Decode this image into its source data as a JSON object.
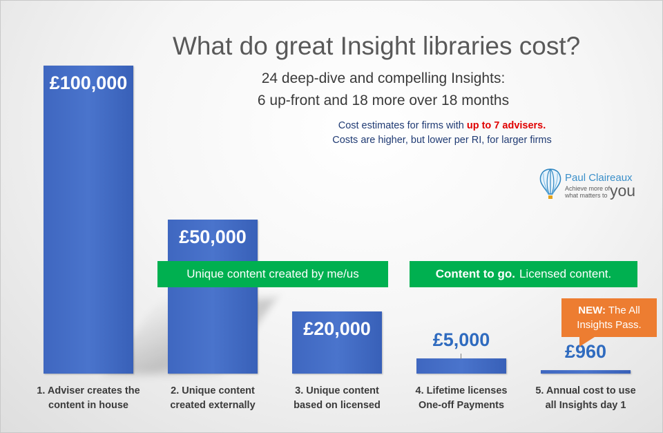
{
  "header": {
    "title": "What do great Insight libraries cost?",
    "subtitle_line1": "24 deep-dive and compelling Insights:",
    "subtitle_line2": "6 up-front and 18 more over 18 months",
    "note_line1_prefix": "Cost estimates for firms with ",
    "note_line1_highlight": "up to 7 advisers.",
    "note_line2": "Costs are higher, but lower per RI, for larger firms"
  },
  "logo": {
    "name": "Paul Claireaux",
    "tagline_line1": "Achieve more of",
    "tagline_line2": "what matters to",
    "tagline_word": "you",
    "icon": "hot-air-balloon-icon"
  },
  "banners": {
    "unique": "Unique content created by me/us",
    "licensed_bold": "Content to go.",
    "licensed_rest": "Licensed content."
  },
  "callout": {
    "bold": "NEW:",
    "rest": "The All Insights Pass."
  },
  "colors": {
    "bar": "#4472c4",
    "banner": "#00b050",
    "callout": "#ed7d31",
    "highlight": "#e00000",
    "outside_value": "#2f6bbf"
  },
  "chart_data": {
    "type": "bar",
    "categories": [
      [
        "1. Adviser creates the",
        "content in house"
      ],
      [
        "2. Unique content",
        "created externally"
      ],
      [
        "3. Unique content",
        "based on licensed"
      ],
      [
        "4. Lifetime licenses",
        "One-off Payments"
      ],
      [
        "5. Annual cost to use",
        "all Insights day 1"
      ]
    ],
    "values": [
      100000,
      50000,
      20000,
      5000,
      960
    ],
    "value_labels": [
      "£100,000",
      "£50,000",
      "£20,000",
      "£5,000",
      "£960"
    ],
    "ylim": [
      0,
      100000
    ],
    "grid": false,
    "legend": "none"
  }
}
